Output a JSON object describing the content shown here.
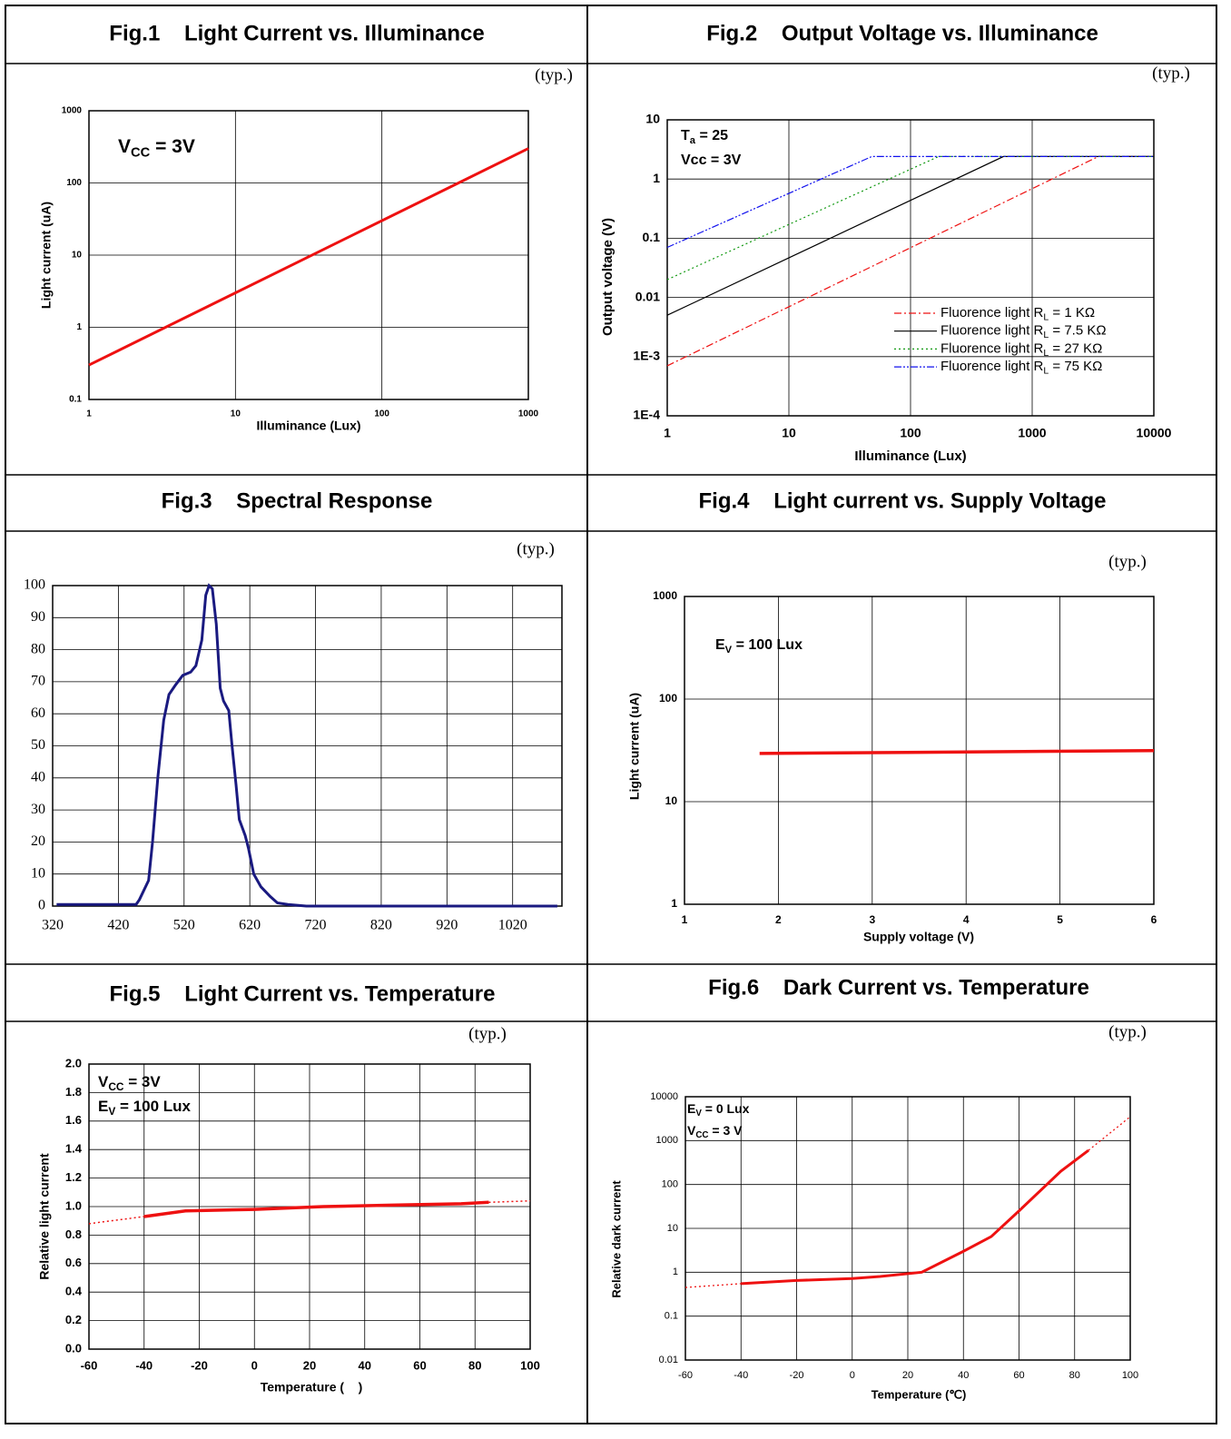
{
  "chart_data": [
    {
      "type": "line",
      "title": "Fig.1    Light Current vs. Illuminance",
      "note": "(typ.)",
      "xlabel": "Illuminance (Lux)",
      "ylabel": "Light current (uA)",
      "xscale": "log",
      "yscale": "log",
      "xlim": [
        1,
        1000
      ],
      "ylim": [
        0.1,
        1000
      ],
      "xticks": [
        1,
        10,
        100,
        1000
      ],
      "yticks": [
        0.1,
        1,
        10,
        100,
        1000
      ],
      "grid": true,
      "annotations": [
        [
          "V",
          {
            "sub": "CC"
          },
          " = 3V"
        ]
      ],
      "series": [
        {
          "color": "#ee1111",
          "style": "solid",
          "x": [
            1,
            1000
          ],
          "values": [
            0.3,
            300
          ]
        }
      ]
    },
    {
      "type": "line",
      "title": "Fig.2    Output Voltage vs. Illuminance",
      "note": "(typ.)",
      "xlabel": "Illuminance (Lux)",
      "ylabel": "Output voltage (V)",
      "xscale": "log",
      "yscale": "log",
      "xlim": [
        1,
        10000
      ],
      "ylim": [
        0.0001,
        10
      ],
      "xticks": [
        1,
        10,
        100,
        1000,
        10000
      ],
      "yticks": [
        {
          "value": 0.0001,
          "label": "1E-4"
        },
        {
          "value": 0.001,
          "label": "1E-3"
        },
        0.01,
        0.1,
        1,
        10
      ],
      "grid": true,
      "legend": "lower right",
      "annotations": [
        [
          "T",
          {
            "sub": "a"
          },
          " = 25"
        ],
        [
          "Vcc = 3V"
        ]
      ],
      "series": [
        {
          "name": [
            "Fluorence light R",
            {
              "sub": "L"
            },
            " = 1 KΩ"
          ],
          "color": "#ee1111",
          "style": "dash-dot",
          "x": [
            1,
            3500,
            10000
          ],
          "values": [
            0.0007,
            2.4,
            2.4
          ]
        },
        {
          "name": [
            "Fluorence light R",
            {
              "sub": "L"
            },
            " = 7.5 KΩ"
          ],
          "color": "#000000",
          "style": "solid",
          "x": [
            1,
            580,
            10000
          ],
          "values": [
            0.005,
            2.4,
            2.4
          ]
        },
        {
          "name": [
            "Fluorence light R",
            {
              "sub": "L"
            },
            " = 27 KΩ"
          ],
          "color": "#119911",
          "style": "dotted",
          "x": [
            1,
            170,
            10000
          ],
          "values": [
            0.02,
            2.4,
            2.4
          ]
        },
        {
          "name": [
            "Fluorence light R",
            {
              "sub": "L"
            },
            " = 75 KΩ"
          ],
          "color": "#1111ee",
          "style": "dash-dot-dot",
          "x": [
            1,
            48,
            10000
          ],
          "values": [
            0.07,
            2.4,
            2.4
          ]
        }
      ]
    },
    {
      "type": "line",
      "title": "Fig.3    Spectral Response",
      "note": "(typ.)",
      "xscale": "linear",
      "yscale": "linear",
      "xlim": [
        320,
        1095
      ],
      "ylim": [
        0,
        100
      ],
      "xticks": [
        320,
        420,
        520,
        620,
        720,
        820,
        920,
        1020
      ],
      "yticks": [
        0,
        10,
        20,
        30,
        40,
        50,
        60,
        70,
        80,
        90,
        100
      ],
      "grid": true,
      "series": [
        {
          "color": "#1a1a80",
          "style": "solid",
          "x": [
            326,
            447,
            452,
            466,
            472,
            480,
            489,
            497,
            507,
            518,
            530,
            538,
            547,
            553,
            558,
            563,
            569,
            575,
            580,
            588,
            593,
            599,
            604,
            613,
            618,
            626,
            637,
            651,
            662,
            678,
            706,
            1088
          ],
          "values": [
            0.5,
            0.5,
            2,
            8,
            20,
            40,
            58,
            66,
            69,
            72,
            73,
            75,
            83,
            97,
            100,
            99,
            88,
            68,
            64,
            61,
            50,
            38,
            27,
            22,
            18,
            10,
            6,
            3,
            1,
            0.5,
            0,
            0
          ]
        }
      ]
    },
    {
      "type": "line",
      "title": "Fig.4    Light current vs. Supply Voltage",
      "note": "(typ.)",
      "xlabel": "Supply voltage (V)",
      "ylabel": "Light current (uA)",
      "xscale": "linear",
      "yscale": "log",
      "xlim": [
        1,
        6
      ],
      "ylim": [
        1,
        1000
      ],
      "xticks": [
        1,
        2,
        3,
        4,
        5,
        6
      ],
      "yticks": [
        1,
        10,
        100,
        1000
      ],
      "grid": true,
      "annotations": [
        [
          "E",
          {
            "sub": "V"
          },
          " = 100 Lux"
        ]
      ],
      "series": [
        {
          "color": "#ee1111",
          "style": "solid",
          "x": [
            1.8,
            6
          ],
          "values": [
            29.5,
            31.5
          ]
        }
      ]
    },
    {
      "type": "line",
      "title": "Fig.5    Light Current vs. Temperature",
      "note": "(typ.)",
      "xlabel": "Temperature (    )",
      "ylabel": "Relative light current",
      "xscale": "linear",
      "yscale": "linear",
      "xlim": [
        -60,
        100
      ],
      "ylim": [
        0,
        2
      ],
      "xticks": [
        -60,
        -40,
        -20,
        0,
        20,
        40,
        60,
        80,
        100
      ],
      "yticks": [
        {
          "value": 0,
          "label": "0.0"
        },
        0.2,
        0.4,
        0.6,
        0.8,
        {
          "value": 1,
          "label": "1.0"
        },
        1.2,
        1.4,
        1.6,
        1.8,
        {
          "value": 2,
          "label": "2.0"
        }
      ],
      "grid": true,
      "annotations": [
        [
          "V",
          {
            "sub": "CC"
          },
          " = 3V"
        ],
        [
          "E",
          {
            "sub": "V"
          },
          " = 100 Lux"
        ]
      ],
      "series": [
        {
          "color": "#ee1111",
          "style": "solid",
          "x": [
            -40,
            -25,
            0,
            25,
            50,
            75,
            85
          ],
          "values": [
            0.93,
            0.97,
            0.98,
            1.0,
            1.01,
            1.02,
            1.03
          ]
        },
        {
          "color": "#ee1111",
          "style": "dotted",
          "x": [
            -60,
            -40
          ],
          "values": [
            0.88,
            0.93
          ]
        },
        {
          "color": "#ee1111",
          "style": "dotted",
          "x": [
            85,
            100
          ],
          "values": [
            1.03,
            1.04
          ]
        }
      ]
    },
    {
      "type": "line",
      "title": "Fig.6    Dark Current vs. Temperature",
      "note": "(typ.)",
      "xlabel": "Temperature (℃)",
      "ylabel": "Relative dark current",
      "xscale": "linear",
      "yscale": "log",
      "xlim": [
        -60,
        100
      ],
      "ylim": [
        0.01,
        10000
      ],
      "xticks": [
        -60,
        -40,
        -20,
        0,
        20,
        40,
        60,
        80,
        100
      ],
      "yticks": [
        0.01,
        0.1,
        1,
        10,
        100,
        1000,
        10000
      ],
      "grid": true,
      "annotations": [
        [
          "E",
          {
            "sub": "V"
          },
          " = 0 Lux"
        ],
        [
          "V",
          {
            "sub": "CC"
          },
          " = 3 V"
        ]
      ],
      "series": [
        {
          "color": "#ee1111",
          "style": "solid",
          "x": [
            -40,
            -20,
            0,
            10,
            25,
            40,
            50,
            60,
            75,
            85
          ],
          "values": [
            0.55,
            0.65,
            0.72,
            0.8,
            1.0,
            3,
            6.5,
            25,
            200,
            600
          ]
        },
        {
          "color": "#ee1111",
          "style": "dotted",
          "x": [
            -60,
            -40
          ],
          "values": [
            0.45,
            0.55
          ]
        },
        {
          "color": "#ee1111",
          "style": "dotted",
          "x": [
            85,
            100
          ],
          "values": [
            600,
            3500
          ]
        }
      ]
    }
  ]
}
